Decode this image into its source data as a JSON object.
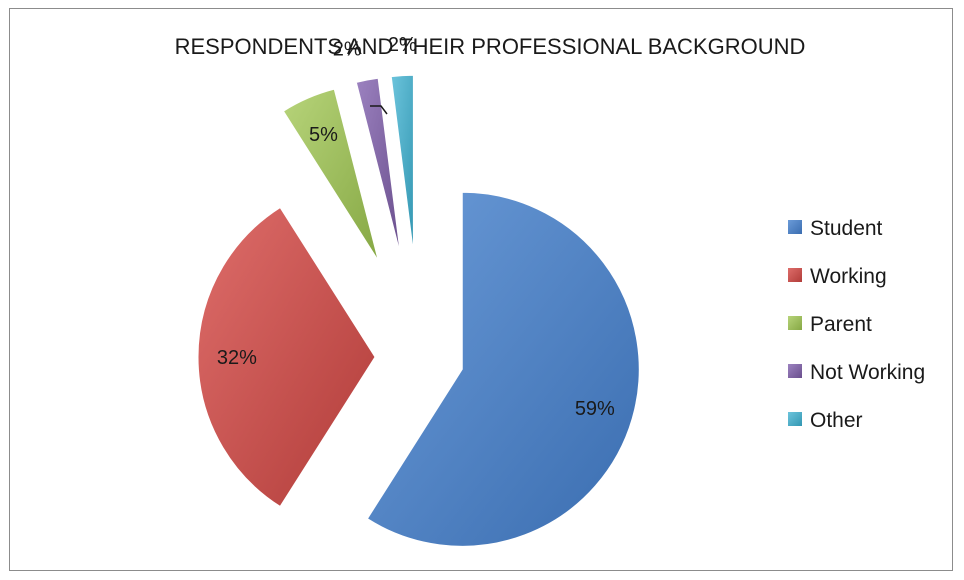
{
  "chart_data": {
    "type": "pie",
    "title": "RESPONDENTS AND THEIR PROFESSIONAL BACKGROUND",
    "categories": [
      "Student",
      "Working",
      "Parent",
      "Not Working",
      "Other"
    ],
    "values": [
      59,
      32,
      5,
      2,
      2
    ],
    "data_labels": [
      "59%",
      "32%",
      "5%",
      "2%",
      "2%"
    ],
    "exploded": true,
    "legend_position": "right",
    "colors": [
      "#4a7ebb",
      "#be4b48",
      "#98b954",
      "#7d60a0",
      "#46aac5"
    ]
  }
}
